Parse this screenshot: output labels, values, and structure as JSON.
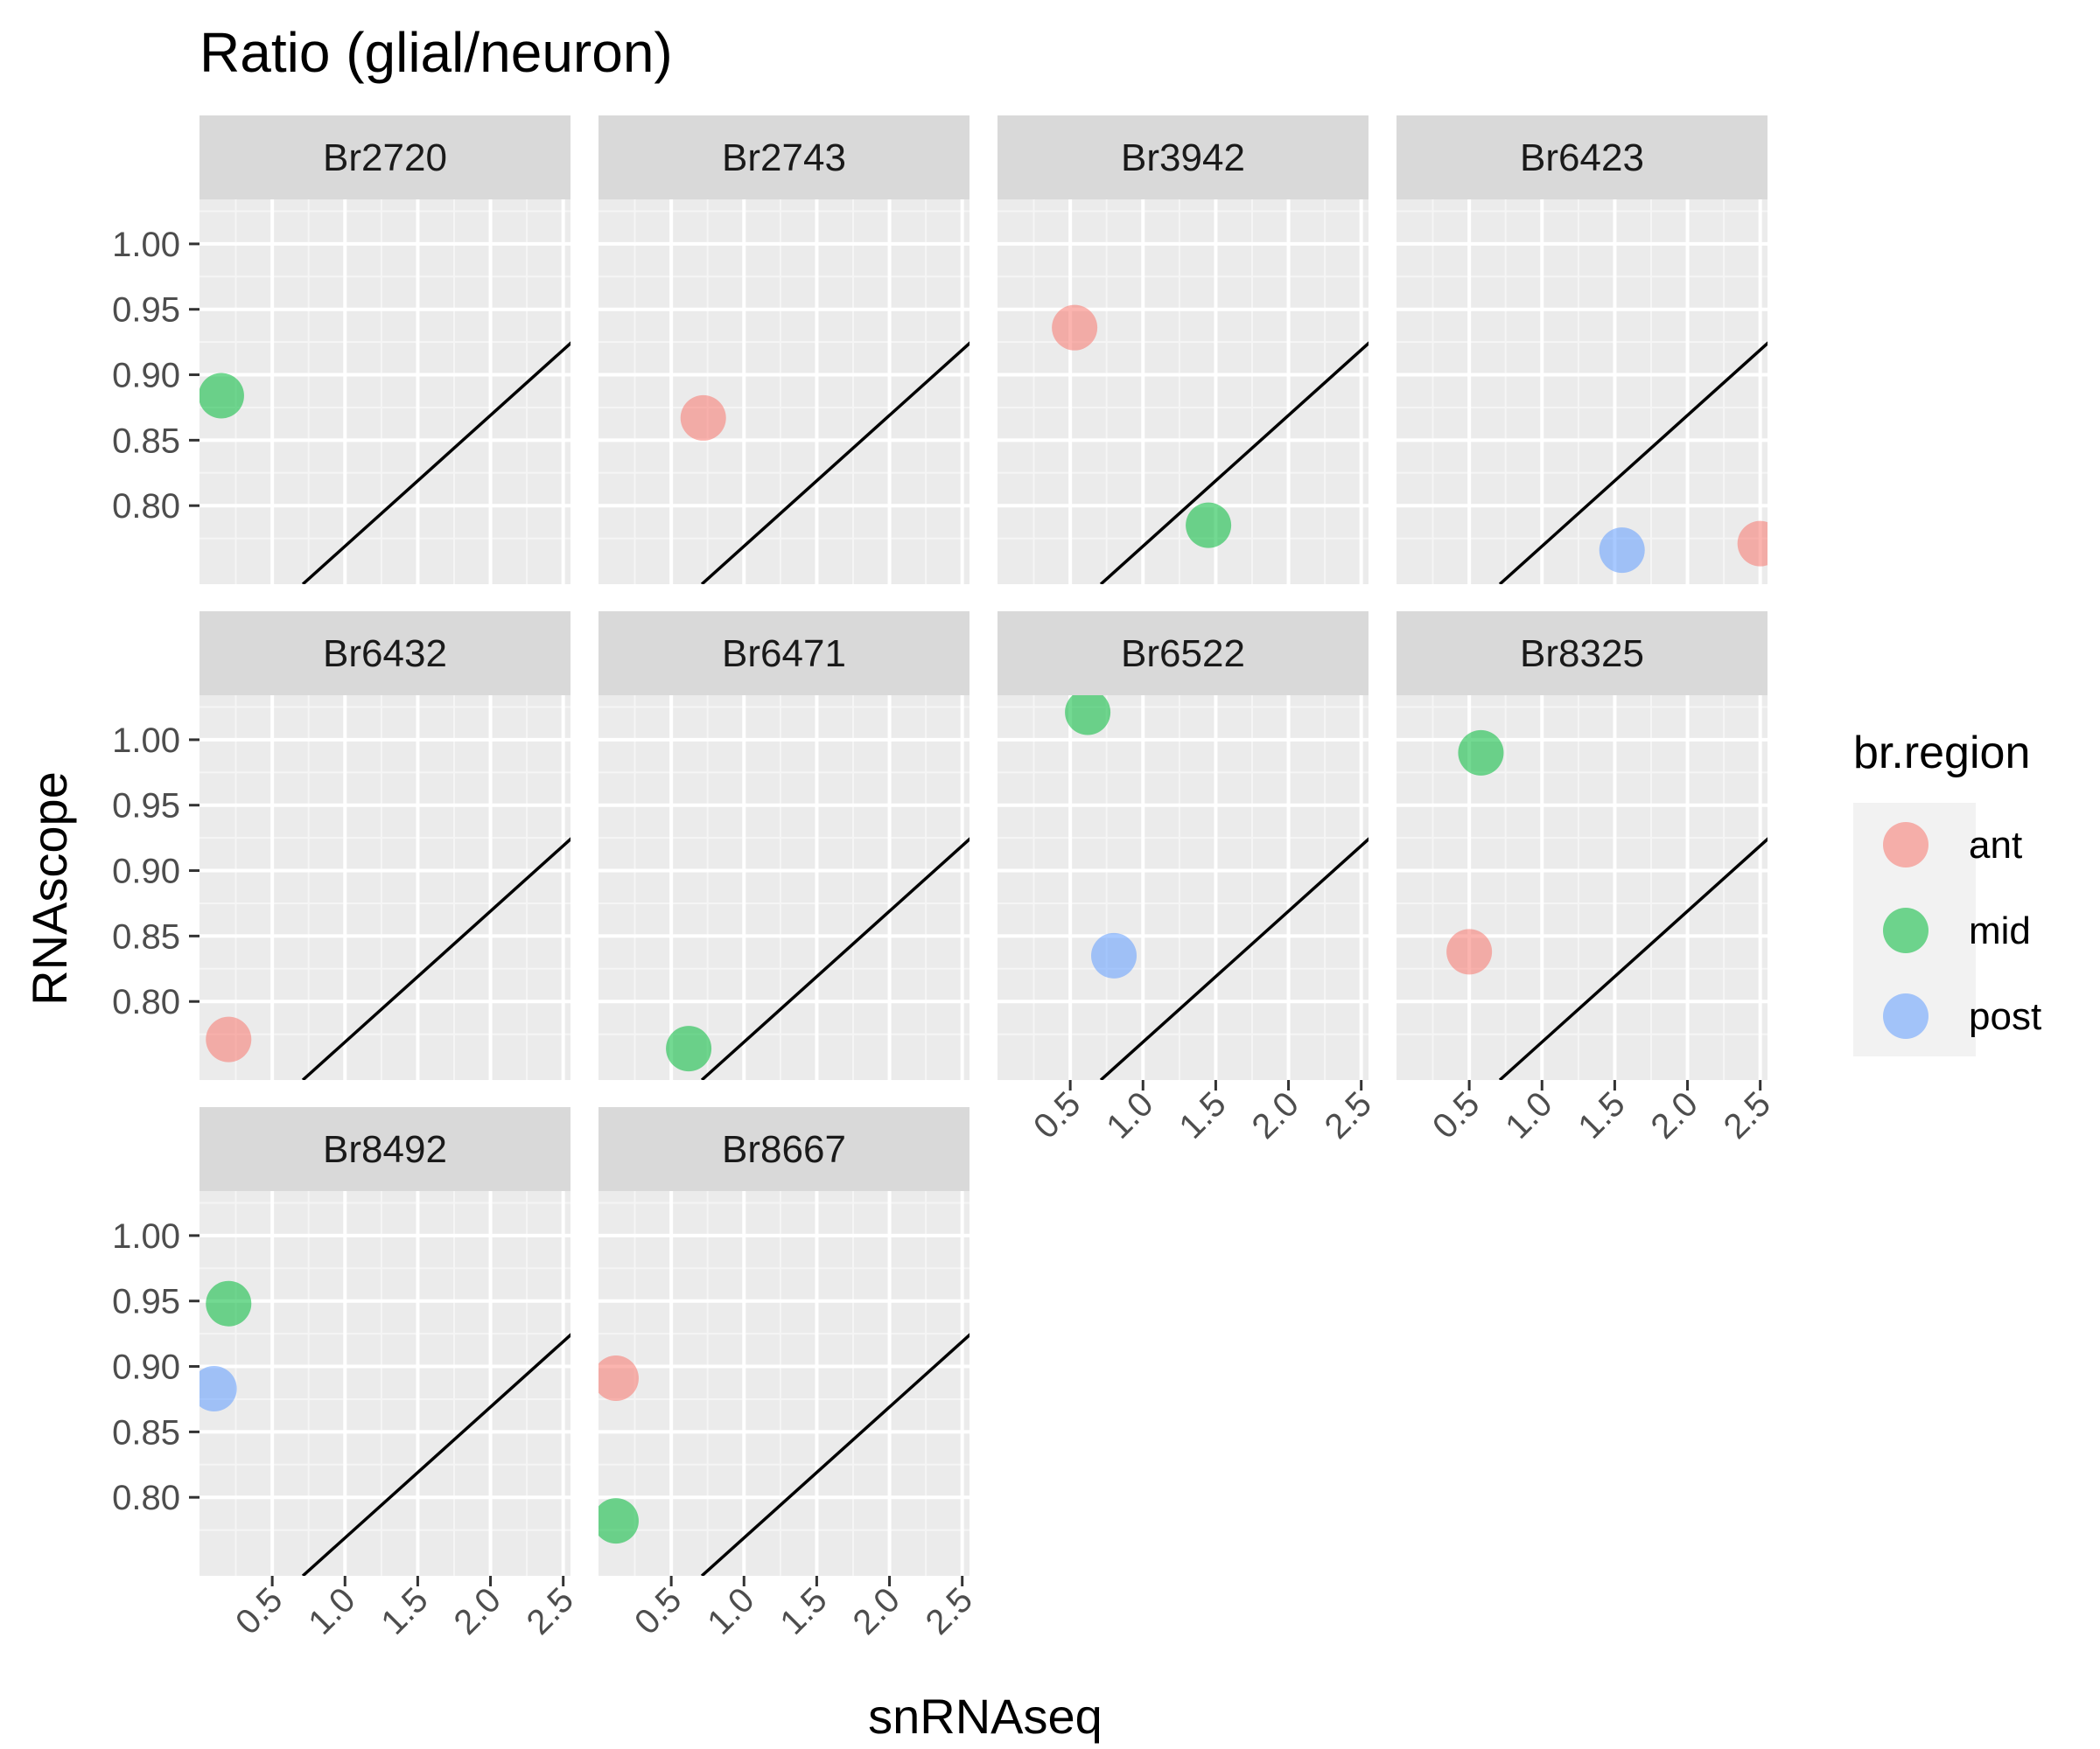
{
  "chart_data": {
    "type": "scatter",
    "title": "Ratio (glial/neuron)",
    "xlabel": "snRNAseq",
    "ylabel": "RNAscope",
    "xlim": [
      0.0,
      2.55
    ],
    "ylim": [
      0.74,
      1.034
    ],
    "x_ticks": [
      0.5,
      1.0,
      1.5,
      2.0,
      2.5
    ],
    "x_tick_labels": [
      "0.5",
      "1.0",
      "1.5",
      "2.0",
      "2.5"
    ],
    "y_ticks": [
      0.8,
      0.85,
      0.9,
      0.95,
      1.0
    ],
    "y_tick_labels": [
      "0.80",
      "0.85",
      "0.90",
      "0.95",
      "1.00"
    ],
    "grid": true,
    "facet_columns": 4,
    "reference_line": {
      "intercept": 0.669,
      "slope": 0.1
    },
    "legend": {
      "title": "br.region",
      "position": "right",
      "entries": [
        {
          "name": "ant",
          "color": "#F8766D"
        },
        {
          "name": "mid",
          "color": "#00BA38"
        },
        {
          "name": "post",
          "color": "#619CFF"
        }
      ]
    },
    "panels": [
      {
        "label": "Br2720",
        "points": [
          {
            "region": "mid",
            "x": 0.15,
            "y": 0.884
          }
        ]
      },
      {
        "label": "Br2743",
        "points": [
          {
            "region": "ant",
            "x": 0.72,
            "y": 0.867
          }
        ]
      },
      {
        "label": "Br3942",
        "points": [
          {
            "region": "ant",
            "x": 0.53,
            "y": 0.936
          },
          {
            "region": "mid",
            "x": 1.45,
            "y": 0.785
          }
        ]
      },
      {
        "label": "Br6423",
        "points": [
          {
            "region": "post",
            "x": 1.55,
            "y": 0.766
          },
          {
            "region": "ant",
            "x": 2.5,
            "y": 0.771
          }
        ]
      },
      {
        "label": "Br6432",
        "points": [
          {
            "region": "ant",
            "x": 0.2,
            "y": 0.771
          }
        ]
      },
      {
        "label": "Br6471",
        "points": [
          {
            "region": "mid",
            "x": 0.62,
            "y": 0.764
          }
        ]
      },
      {
        "label": "Br6522",
        "points": [
          {
            "region": "mid",
            "x": 0.62,
            "y": 1.021
          },
          {
            "region": "post",
            "x": 0.8,
            "y": 0.835
          }
        ]
      },
      {
        "label": "Br8325",
        "points": [
          {
            "region": "mid",
            "x": 0.58,
            "y": 0.99
          },
          {
            "region": "ant",
            "x": 0.5,
            "y": 0.838
          }
        ]
      },
      {
        "label": "Br8492",
        "points": [
          {
            "region": "mid",
            "x": 0.2,
            "y": 0.948
          },
          {
            "region": "post",
            "x": 0.1,
            "y": 0.883
          }
        ]
      },
      {
        "label": "Br8667",
        "points": [
          {
            "region": "ant",
            "x": 0.12,
            "y": 0.891
          },
          {
            "region": "mid",
            "x": 0.12,
            "y": 0.782
          }
        ]
      }
    ]
  }
}
